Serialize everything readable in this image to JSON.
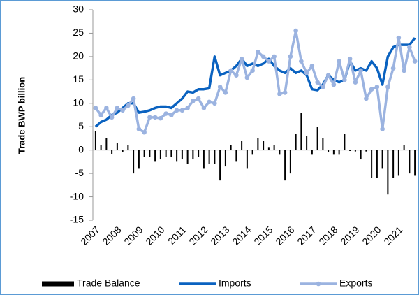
{
  "chart_data": {
    "type": "combo",
    "y_label": "Trade BWP billion",
    "categories": [
      "2007",
      null,
      null,
      null,
      "2008",
      null,
      null,
      null,
      "2009",
      null,
      null,
      null,
      "2010",
      null,
      null,
      null,
      "2011",
      null,
      null,
      null,
      "2012",
      null,
      null,
      null,
      "2013",
      null,
      null,
      null,
      "2014",
      null,
      null,
      null,
      "2015",
      null,
      null,
      null,
      "2016",
      null,
      null,
      null,
      "2017",
      null,
      null,
      null,
      "2018",
      null,
      null,
      null,
      "2019",
      null,
      null,
      null,
      "2020",
      null,
      null,
      null,
      "2021",
      null,
      null,
      null
    ],
    "ylim": [
      -15,
      30
    ],
    "yticks": [
      -15,
      -10,
      -5,
      0,
      5,
      10,
      15,
      20,
      25,
      30
    ],
    "legend": "bottom",
    "series": [
      {
        "name": "Trade Balance",
        "type": "bar",
        "color": "#000000",
        "values": [
          4,
          1,
          2.5,
          -0.8,
          1.5,
          -0.5,
          1,
          -5,
          -4,
          -1.5,
          -1.5,
          -2.5,
          -2,
          -1.5,
          -1.5,
          -2.5,
          -2,
          -3,
          -2,
          -1.5,
          -4,
          -3,
          -3,
          -6.5,
          -3.5,
          1,
          -2.5,
          2,
          -4,
          -1,
          2.5,
          2,
          0.5,
          1,
          -1,
          -6.5,
          -5,
          3.5,
          8,
          3,
          -1,
          5,
          2.5,
          -0.5,
          -1,
          -1,
          3.5,
          -0.2,
          -0.3,
          -2,
          -0.3,
          -6,
          -6,
          -4,
          -9.5,
          -6,
          -5.5,
          1,
          -5,
          -5.5
        ]
      },
      {
        "name": "Imports",
        "type": "line",
        "color": "#0a62c0",
        "values": [
          5,
          6,
          6.5,
          7.5,
          8,
          9,
          10,
          10,
          8,
          8.2,
          8.5,
          9,
          9.3,
          9.3,
          9,
          10,
          11,
          12.5,
          12.3,
          13,
          13,
          13.2,
          20,
          16,
          16.5,
          17,
          18,
          19.5,
          18,
          18.5,
          18,
          18.5,
          19.5,
          18,
          17,
          16.5,
          17.5,
          16.5,
          17,
          16,
          13,
          12.8,
          14,
          16,
          15,
          14.5,
          15,
          19,
          17,
          17.5,
          17,
          19,
          17.5,
          14,
          20,
          22,
          22.5,
          22.5,
          22.5,
          24
        ]
      },
      {
        "name": "Exports",
        "type": "line-marker",
        "color": "#9bb3e0",
        "values": [
          9,
          7.5,
          9,
          7,
          9,
          8.5,
          9.5,
          11,
          4.5,
          3.8,
          7,
          7,
          6.8,
          7.8,
          7.5,
          8.5,
          8.5,
          9,
          10.5,
          11,
          9,
          10.3,
          10,
          13.5,
          12.3,
          17,
          16,
          19.5,
          15.5,
          17,
          21,
          20,
          19,
          20,
          12,
          12.3,
          20,
          25.5,
          19,
          16.5,
          18,
          14.5,
          13.5,
          16,
          14,
          19,
          15,
          19.5,
          14.5,
          17,
          11,
          13,
          13.5,
          4.5,
          13.5,
          17.5,
          24,
          17,
          22,
          19
        ]
      }
    ]
  }
}
